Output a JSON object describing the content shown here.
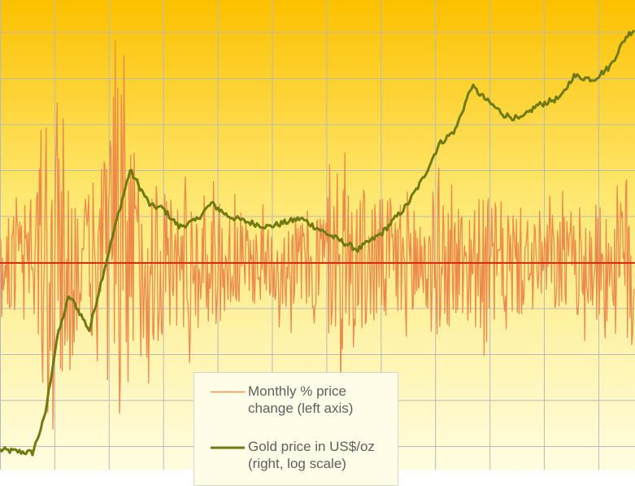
{
  "colors": {
    "background_top": "#fcc100",
    "background_mid": "#fee870",
    "background_bottom": "#fffde0",
    "grid": "#b9b9b9",
    "monthly_change_line": "#ec8a4b",
    "gold_price_line": "#6f7a12",
    "zero_line": "#d62c12"
  },
  "chart_data": {
    "type": "line",
    "title": "",
    "xlabel": "",
    "ylabel": "",
    "grid": true,
    "legend_position": "bottom-left",
    "axes": {
      "left": {
        "ticks_visible": false,
        "ylim": [
          -16,
          20
        ]
      },
      "right": {
        "scale": "log",
        "ticks_visible": false,
        "ylim": [
          30,
          2500
        ]
      }
    },
    "x": {
      "start": 0,
      "end": 780,
      "step": 1
    },
    "series": [
      {
        "name": "Monthly % price change (left axis)",
        "axis": "left",
        "note_values": "approximate reading of a dense monthly series; same length as gold price series",
        "amplitude_profile": [
          [
            0,
            3
          ],
          [
            40,
            5
          ],
          [
            60,
            16
          ],
          [
            75,
            12
          ],
          [
            100,
            4
          ],
          [
            130,
            10
          ],
          [
            150,
            17
          ],
          [
            170,
            8
          ],
          [
            200,
            6
          ],
          [
            260,
            5
          ],
          [
            320,
            3
          ],
          [
            380,
            4
          ],
          [
            420,
            7
          ],
          [
            470,
            5
          ],
          [
            520,
            6
          ],
          [
            560,
            5
          ],
          [
            600,
            5
          ],
          [
            650,
            4
          ],
          [
            700,
            4
          ],
          [
            750,
            5
          ],
          [
            780,
            8
          ]
        ]
      },
      {
        "name": "Gold price in US$/oz (right, log scale)",
        "axis": "right",
        "points": [
          [
            0,
            36
          ],
          [
            40,
            35
          ],
          [
            55,
            50
          ],
          [
            70,
            110
          ],
          [
            85,
            170
          ],
          [
            95,
            150
          ],
          [
            110,
            120
          ],
          [
            125,
            200
          ],
          [
            145,
            380
          ],
          [
            160,
            600
          ],
          [
            170,
            520
          ],
          [
            185,
            420
          ],
          [
            200,
            410
          ],
          [
            220,
            340
          ],
          [
            240,
            360
          ],
          [
            260,
            430
          ],
          [
            280,
            380
          ],
          [
            300,
            360
          ],
          [
            330,
            340
          ],
          [
            370,
            370
          ],
          [
            400,
            320
          ],
          [
            440,
            270
          ],
          [
            470,
            320
          ],
          [
            500,
            420
          ],
          [
            520,
            550
          ],
          [
            540,
            780
          ],
          [
            560,
            900
          ],
          [
            580,
            1400
          ],
          [
            600,
            1200
          ],
          [
            620,
            1050
          ],
          [
            640,
            1000
          ],
          [
            660,
            1150
          ],
          [
            690,
            1250
          ],
          [
            705,
            1550
          ],
          [
            730,
            1500
          ],
          [
            750,
            1700
          ],
          [
            770,
            2300
          ],
          [
            781,
            2500
          ]
        ]
      }
    ]
  },
  "legend": {
    "entry1_line1": "Monthly % price",
    "entry1_line2": "change (left axis)",
    "entry2_line1": "Gold price in US$/oz",
    "entry2_line2": "(right, log scale)"
  }
}
